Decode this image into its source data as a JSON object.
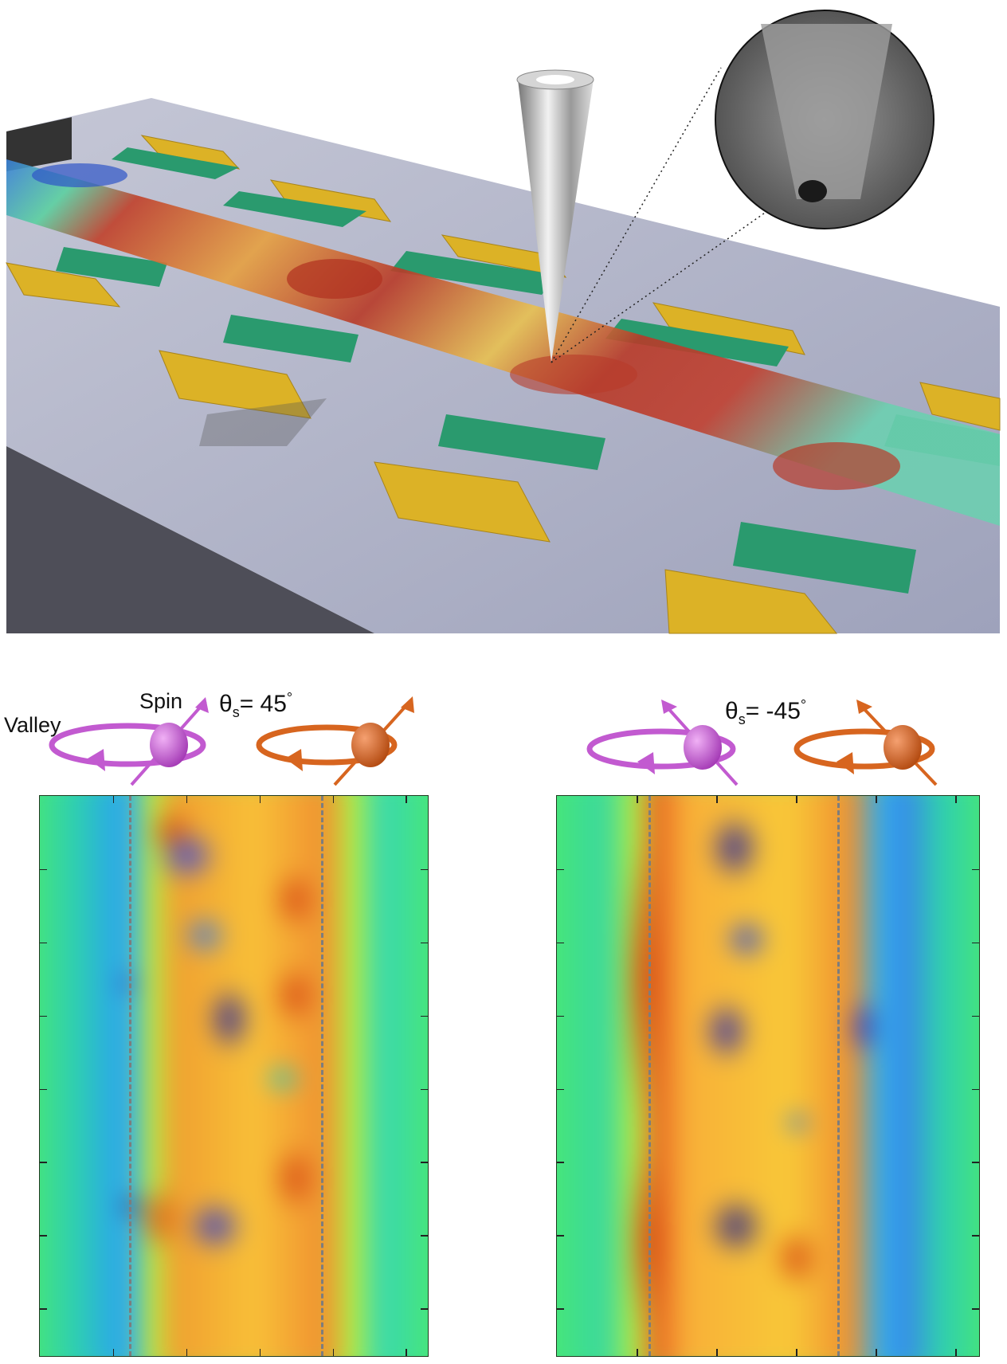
{
  "scene": {
    "description_label": "",
    "colors": {
      "substrate": "#b9bcd0",
      "contact": "#e0b626",
      "layer": "#2a9a6e",
      "tip": "#c8c8c8"
    }
  },
  "legend": {
    "valley_label": "Valley",
    "spin_label": "Spin",
    "left_theta_label": "θ",
    "left_theta_sub": "s",
    "left_theta_value": "= 45",
    "right_theta_label": "θ",
    "right_theta_sub": "s",
    "right_theta_value": "= -45",
    "degree": "°",
    "colors": {
      "valley_1": "#c25ad0",
      "valley_2": "#d7651f"
    }
  },
  "panels": [
    {
      "name": "theta-45",
      "colormap": "jet"
    },
    {
      "name": "theta-minus-45",
      "colormap": "jet"
    }
  ]
}
